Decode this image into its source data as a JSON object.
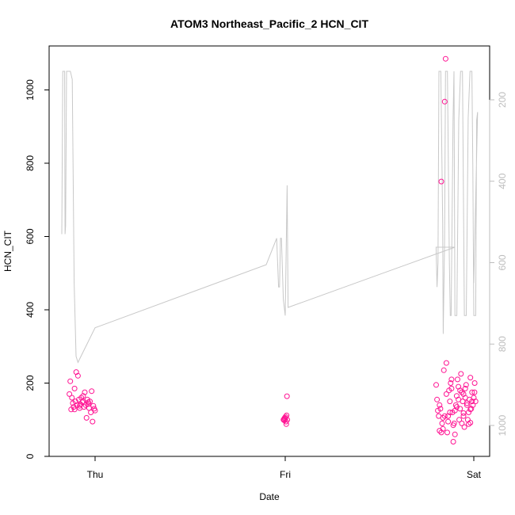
{
  "chart_data": {
    "type": "scatter",
    "title": "ATOM3 Northeast_Pacific_2 HCN_CIT",
    "xlabel": "Date",
    "ylabel": "HCN_CIT",
    "x_tick_labels": [
      "Thu",
      "Fri",
      "Sat"
    ],
    "y_ticks": [
      0,
      200,
      400,
      600,
      800,
      1000
    ],
    "ylim": [
      0,
      1120
    ],
    "y2_ticks": [
      200,
      400,
      600,
      800,
      1000
    ],
    "y2lim_reversed": [
      130,
      1035
    ],
    "grid": false,
    "colors": {
      "points": "#ff1493",
      "altitude_line": "#c8c8c8",
      "frame": "#000000",
      "right_axis": "#bdbdbd"
    },
    "series": [
      {
        "values_by_day": {
          "thu": [
            [
              -0.15,
              170
            ],
            [
              -0.145,
              205
            ],
            [
              -0.14,
              128
            ],
            [
              -0.135,
              160
            ],
            [
              -0.13,
              145
            ],
            [
              -0.125,
              135
            ],
            [
              -0.12,
              185
            ],
            [
              -0.115,
              150
            ],
            [
              -0.11,
              230
            ],
            [
              -0.105,
              140
            ],
            [
              -0.1,
              220
            ],
            [
              -0.095,
              155
            ],
            [
              -0.09,
              138
            ],
            [
              -0.085,
              142
            ],
            [
              -0.08,
              160
            ],
            [
              -0.075,
              148
            ],
            [
              -0.07,
              150
            ],
            [
              -0.065,
              135
            ],
            [
              -0.06,
              175
            ],
            [
              -0.055,
              140
            ],
            [
              -0.05,
              105
            ],
            [
              -0.045,
              155
            ],
            [
              -0.04,
              143
            ],
            [
              -0.035,
              132
            ],
            [
              -0.03,
              150
            ],
            [
              -0.025,
              120
            ],
            [
              -0.02,
              178
            ],
            [
              -0.015,
              95
            ],
            [
              -0.01,
              138
            ],
            [
              -0.005,
              130
            ],
            [
              0.0,
              125
            ],
            [
              -0.12,
              128
            ],
            [
              -0.09,
              132
            ],
            [
              -0.07,
              165
            ],
            [
              -0.04,
              148
            ]
          ],
          "fri": [
            [
              -0.01,
              100
            ],
            [
              -0.007,
              102
            ],
            [
              -0.005,
              98
            ],
            [
              -0.003,
              105
            ],
            [
              0.0,
              103
            ],
            [
              0.002,
              108
            ],
            [
              0.004,
              95
            ],
            [
              0.006,
              88
            ],
            [
              0.008,
              112
            ],
            [
              0.01,
              164
            ],
            [
              0.012,
              100
            ]
          ],
          "sat": [
            [
              -0.22,
              195
            ],
            [
              -0.215,
              155
            ],
            [
              -0.21,
              125
            ],
            [
              -0.205,
              110
            ],
            [
              -0.2,
              140
            ],
            [
              -0.195,
              130
            ],
            [
              -0.19,
              750
            ],
            [
              -0.185,
              90
            ],
            [
              -0.18,
              75
            ],
            [
              -0.175,
              235
            ],
            [
              -0.17,
              968
            ],
            [
              -0.165,
              1085
            ],
            [
              -0.16,
              255
            ],
            [
              -0.155,
              65
            ],
            [
              -0.15,
              110
            ],
            [
              -0.145,
              180
            ],
            [
              -0.14,
              150
            ],
            [
              -0.135,
              200
            ],
            [
              -0.13,
              185
            ],
            [
              -0.125,
              120
            ],
            [
              -0.12,
              40
            ],
            [
              -0.115,
              90
            ],
            [
              -0.11,
              60
            ],
            [
              -0.105,
              140
            ],
            [
              -0.1,
              165
            ],
            [
              -0.095,
              210
            ],
            [
              -0.09,
              190
            ],
            [
              -0.085,
              100
            ],
            [
              -0.08,
              130
            ],
            [
              -0.075,
              225
            ],
            [
              -0.07,
              175
            ],
            [
              -0.065,
              150
            ],
            [
              -0.06,
              118
            ],
            [
              -0.055,
              80
            ],
            [
              -0.05,
              160
            ],
            [
              -0.045,
              195
            ],
            [
              -0.04,
              140
            ],
            [
              -0.035,
              100
            ],
            [
              -0.03,
              88
            ],
            [
              -0.025,
              155
            ],
            [
              -0.02,
              215
            ],
            [
              -0.015,
              130
            ],
            [
              -0.01,
              175
            ],
            [
              -0.005,
              140
            ],
            [
              0.0,
              160
            ],
            [
              0.005,
              200
            ],
            [
              0.01,
              150
            ],
            [
              -0.2,
              70
            ],
            [
              -0.18,
              105
            ],
            [
              -0.15,
              95
            ],
            [
              -0.13,
              210
            ],
            [
              -0.11,
              125
            ],
            [
              -0.09,
              155
            ],
            [
              -0.07,
              90
            ],
            [
              -0.05,
              185
            ],
            [
              -0.03,
              120
            ],
            [
              -0.01,
              150
            ],
            [
              0.004,
              175
            ],
            [
              -0.16,
              170
            ],
            [
              -0.12,
              85
            ],
            [
              -0.08,
              180
            ],
            [
              -0.06,
              110
            ],
            [
              -0.04,
              145
            ],
            [
              -0.02,
              92
            ],
            [
              -0.19,
              65
            ],
            [
              -0.17,
              110
            ],
            [
              -0.14,
              120
            ],
            [
              -0.1,
              135
            ],
            [
              -0.06,
              170
            ],
            [
              -0.02,
              128
            ]
          ]
        }
      }
    ],
    "altitude_line": [
      [
        -0.175,
        530
      ],
      [
        -0.17,
        130
      ],
      [
        -0.16,
        130
      ],
      [
        -0.158,
        530
      ],
      [
        -0.155,
        510
      ],
      [
        -0.15,
        130
      ],
      [
        -0.14,
        130
      ],
      [
        -0.13,
        130
      ],
      [
        -0.12,
        150
      ],
      [
        -0.11,
        650
      ],
      [
        -0.1,
        830
      ],
      [
        -0.09,
        845
      ],
      [
        0.0,
        760
      ],
      [
        0.9,
        605
      ],
      [
        0.955,
        540
      ],
      [
        0.96,
        600
      ],
      [
        0.965,
        660
      ],
      [
        0.97,
        660
      ],
      [
        0.975,
        540
      ],
      [
        0.98,
        540
      ],
      [
        0.99,
        690
      ],
      [
        1.0,
        730
      ],
      [
        1.01,
        410
      ],
      [
        1.015,
        710
      ],
      [
        1.9,
        562
      ],
      [
        1.8,
        562
      ],
      [
        1.805,
        660
      ],
      [
        1.81,
        600
      ],
      [
        1.815,
        130
      ],
      [
        1.82,
        130
      ],
      [
        1.825,
        130
      ],
      [
        1.835,
        500
      ],
      [
        1.838,
        775
      ],
      [
        1.845,
        550
      ],
      [
        1.85,
        130
      ],
      [
        1.86,
        130
      ],
      [
        1.87,
        590
      ],
      [
        1.875,
        730
      ],
      [
        1.88,
        730
      ],
      [
        1.89,
        250
      ],
      [
        1.895,
        130
      ],
      [
        1.9,
        730
      ],
      [
        1.91,
        730
      ],
      [
        1.92,
        250
      ],
      [
        1.93,
        130
      ],
      [
        1.94,
        130
      ],
      [
        1.95,
        730
      ],
      [
        1.96,
        730
      ],
      [
        1.97,
        245
      ],
      [
        1.98,
        130
      ],
      [
        1.99,
        130
      ],
      [
        1.995,
        370
      ],
      [
        2.0,
        730
      ],
      [
        2.01,
        730
      ],
      [
        2.015,
        250
      ],
      [
        2.02,
        230
      ],
      [
        2.0,
        650
      ]
    ]
  }
}
